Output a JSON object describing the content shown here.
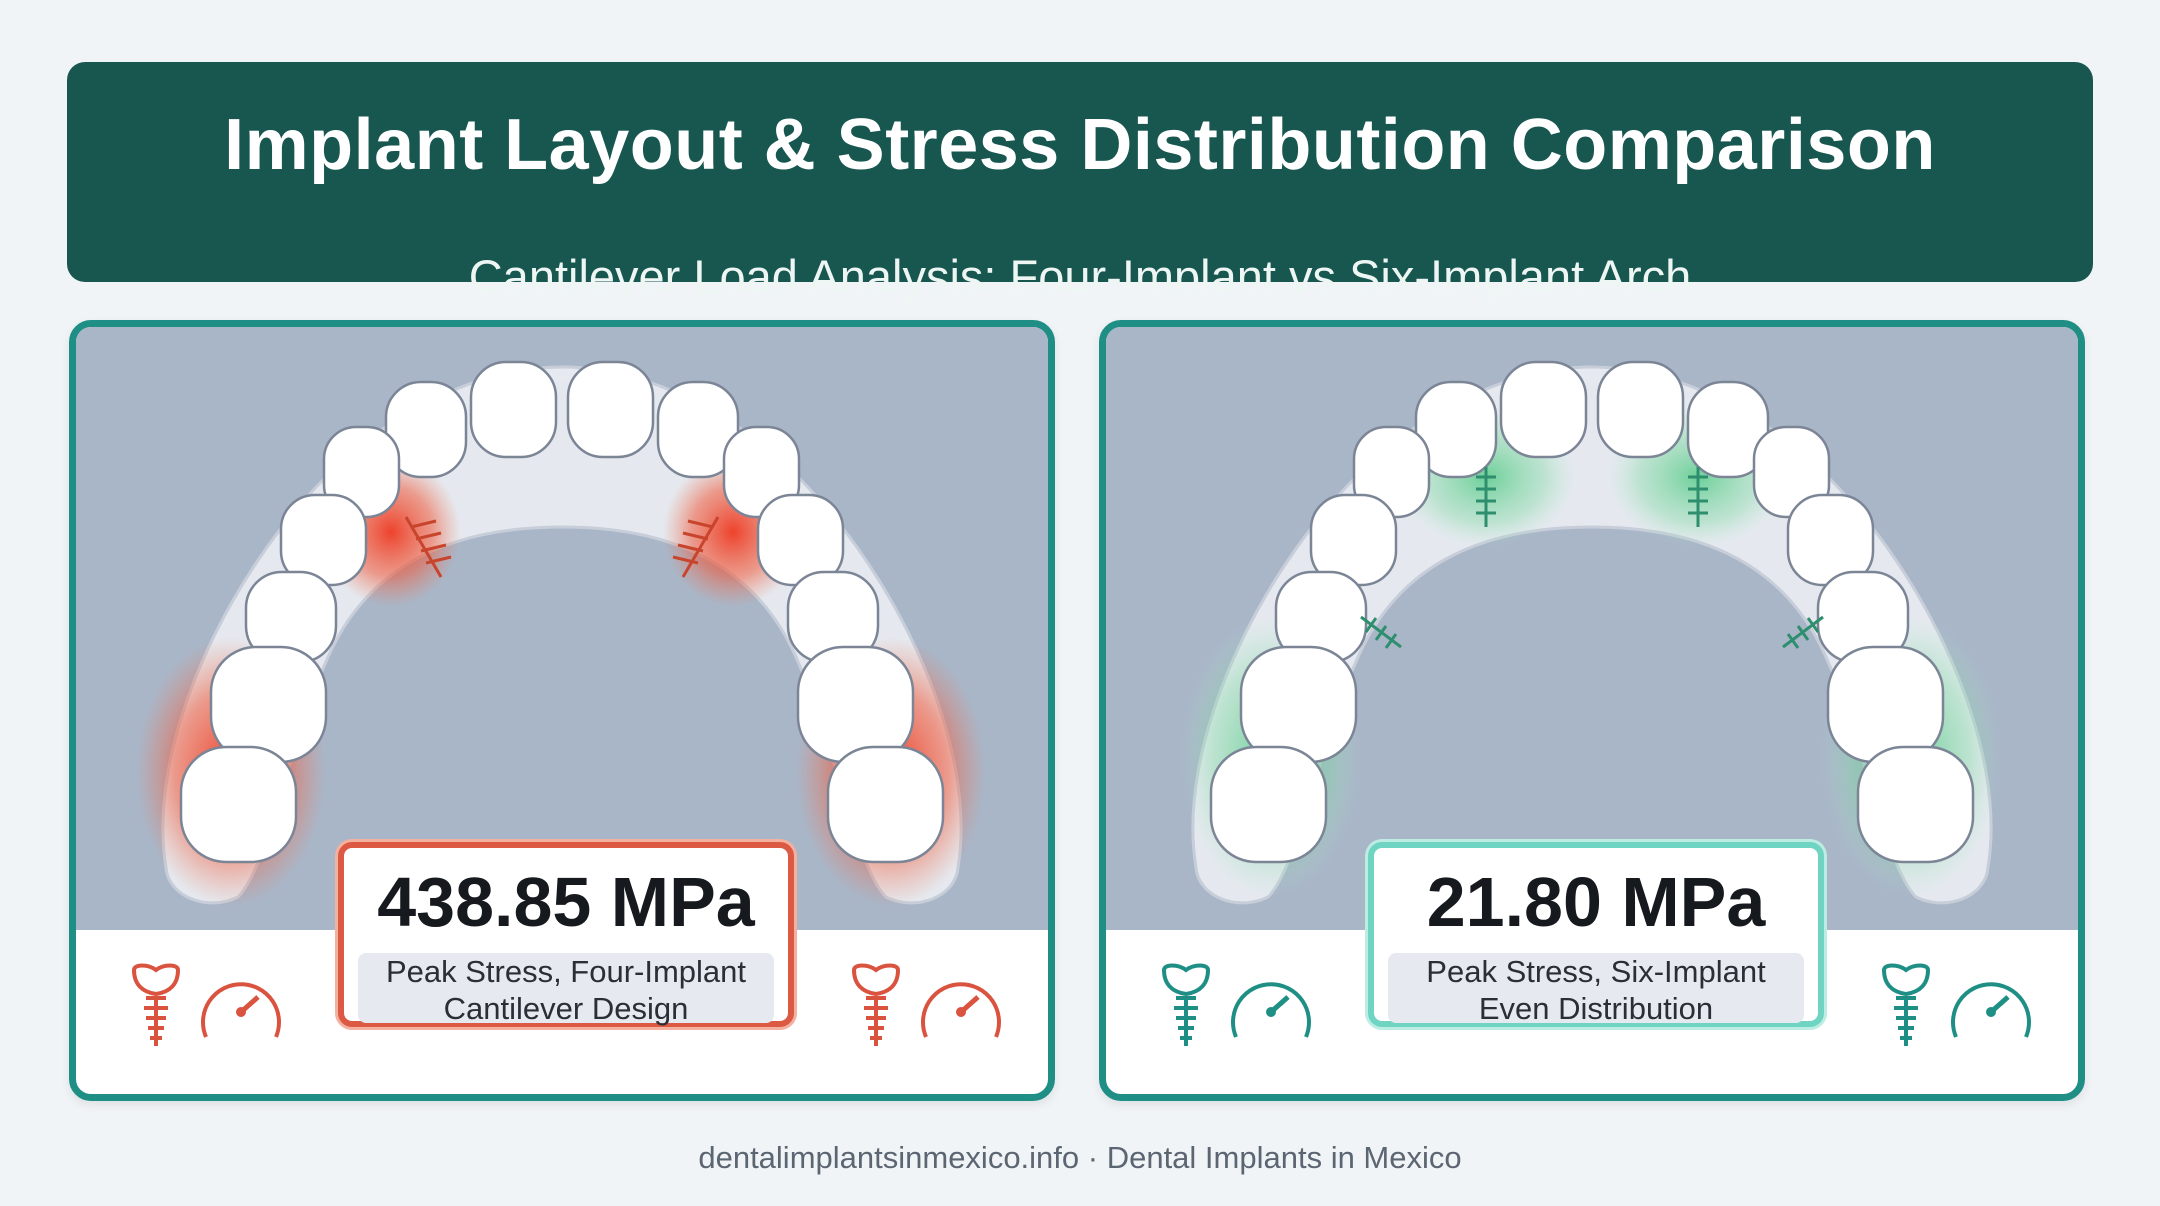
{
  "header": {
    "title": "Implant Layout & Stress Distribution Comparison",
    "subtitle": "Cantilever Load Analysis: Four-Implant vs Six-Implant Arch"
  },
  "panels": [
    {
      "value": "438.85 MPa",
      "label_line1": "Peak Stress, Four-Implant",
      "label_line2": "Cantilever Design",
      "accent_color": "#dc5a44",
      "glow_color": "#e8472f"
    },
    {
      "value": "21.80 MPa",
      "label_line1": "Peak Stress, Six-Implant",
      "label_line2": "Even Distribution",
      "accent_color": "#1f8f86",
      "glow_color": "#3fc77a"
    }
  ],
  "footer": {
    "text": "dentalimplantsinmexico.info · Dental Implants in Mexico"
  },
  "icons": [
    "tooth-implant-icon",
    "gauge-icon"
  ]
}
